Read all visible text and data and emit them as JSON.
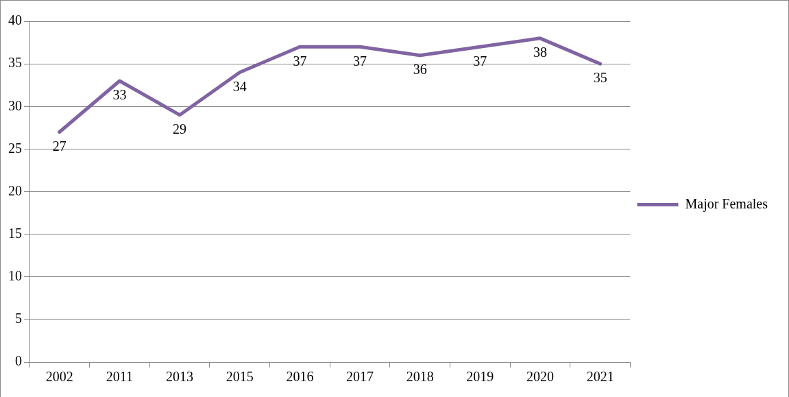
{
  "chart_data": {
    "type": "line",
    "categories": [
      "2002",
      "2011",
      "2013",
      "2015",
      "2016",
      "2017",
      "2018",
      "2019",
      "2020",
      "2021"
    ],
    "series": [
      {
        "name": "Major Females",
        "color": "#8064a2",
        "values": [
          27,
          33,
          29,
          34,
          37,
          37,
          36,
          37,
          38,
          35
        ]
      }
    ],
    "ylim": [
      0,
      40
    ],
    "yticks": [
      0,
      5,
      10,
      15,
      20,
      25,
      30,
      35,
      40
    ],
    "grid": "y",
    "legend": "right",
    "data_labels": true,
    "marker": "none",
    "line_style": "solid"
  }
}
